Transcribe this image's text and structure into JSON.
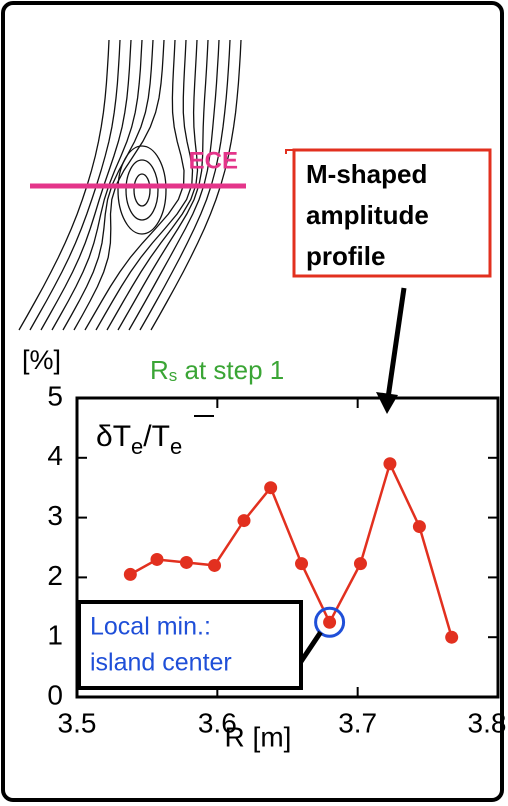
{
  "chart_data": {
    "type": "line",
    "x": [
      3.538,
      3.557,
      3.578,
      3.598,
      3.619,
      3.638,
      3.66,
      3.68,
      3.702,
      3.723,
      3.744,
      3.767
    ],
    "series": [
      {
        "color": "#e2301f",
        "values": [
          2.05,
          2.3,
          2.25,
          2.2,
          2.95,
          3.5,
          2.23,
          1.25,
          2.23,
          3.9,
          2.85,
          1.0
        ]
      }
    ],
    "xlim": [
      3.5,
      3.8
    ],
    "xticks": [
      3.5,
      3.6,
      3.7,
      3.8
    ],
    "ylim": [
      0,
      5
    ],
    "yticks": [
      0,
      1,
      2,
      3,
      4,
      5
    ],
    "xlabel": "R [m]",
    "yunit": "[%]",
    "ylabel_parts": [
      "δT",
      "e",
      "/",
      "T",
      "e"
    ],
    "rs_label": {
      "main": "R",
      "sub": "s",
      "rest": " at step 1"
    },
    "highlight_index": 7,
    "highlight_color": "#1f4fd8",
    "min_note": [
      "Local min.:",
      "island center"
    ],
    "m_note": [
      "M-shaped",
      "amplitude",
      "profile"
    ],
    "ece_label": "ECE",
    "ece_color": "#e4358a"
  }
}
